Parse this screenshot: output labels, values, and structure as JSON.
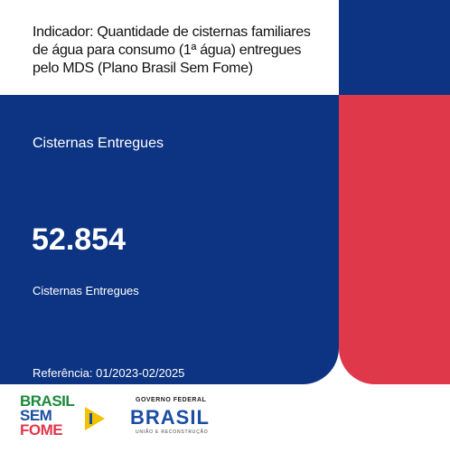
{
  "header": {
    "title": "Indicador: Quantidade de cisternas familiares de água para consumo (1ª água) entregues pelo MDS (Plano Brasil Sem Fome)"
  },
  "card": {
    "label": "Cisternas Entregues",
    "value": "52.854",
    "caption": "Cisternas Entregues",
    "reference": "Referência: 01/2023-02/2025"
  },
  "footer": {
    "logo_left": [
      "BRASIL",
      "SEM",
      "FOME"
    ],
    "logo_right_top": "GOVERNO FEDERAL",
    "logo_right_main": "BRASIL",
    "logo_right_bottom": "UNIÃO E RECONSTRUÇÃO"
  }
}
